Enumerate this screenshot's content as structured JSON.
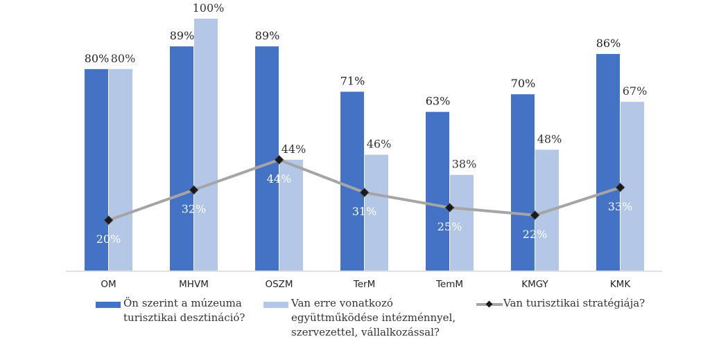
{
  "chart_data": {
    "type": "bar",
    "categories": [
      "OM",
      "MHVM",
      "OSZM",
      "TerM",
      "TemM",
      "KMGY",
      "KMK"
    ],
    "series": [
      {
        "name": "Ön szerint a múzeuma turisztikai desztináció?",
        "kind": "bar",
        "color": "#4472c4",
        "values": [
          80,
          89,
          89,
          71,
          63,
          70,
          86
        ],
        "labels": [
          "80%",
          "89%",
          "89%",
          "71%",
          "63%",
          "70%",
          "86%"
        ]
      },
      {
        "name": "Van erre vonatkozó együttműködése intézménnyel, szervezettel, vállalkozással?",
        "kind": "bar",
        "color": "#b4c7e7",
        "values": [
          80,
          100,
          44,
          46,
          38,
          48,
          67
        ],
        "labels": [
          "80%",
          "100%",
          "44%",
          "46%",
          "38%",
          "48%",
          "67%"
        ]
      },
      {
        "name": "Van turisztikai stratégiája?",
        "kind": "line",
        "color": "#a5a5a5",
        "marker_color": "#1a1a1a",
        "values": [
          20,
          32,
          44,
          31,
          25,
          22,
          33
        ],
        "labels": [
          "20%",
          "32%",
          "44%",
          "31%",
          "25%",
          "22%",
          "33%"
        ]
      }
    ],
    "ylim": [
      0,
      100
    ],
    "grid": false,
    "legend_position": "bottom",
    "title": "",
    "xlabel": "",
    "ylabel": ""
  },
  "legend": {
    "items": [
      {
        "line1": "Ön szerint a múzeuma",
        "line2": "turisztikai desztináció?",
        "line3": ""
      },
      {
        "line1": "Van erre vonatkozó",
        "line2": "együttműködése intézménnyel,",
        "line3": "szervezettel, vállalkozással?"
      },
      {
        "line1": "Van turisztikai stratégiája?",
        "line2": "",
        "line3": ""
      }
    ]
  }
}
